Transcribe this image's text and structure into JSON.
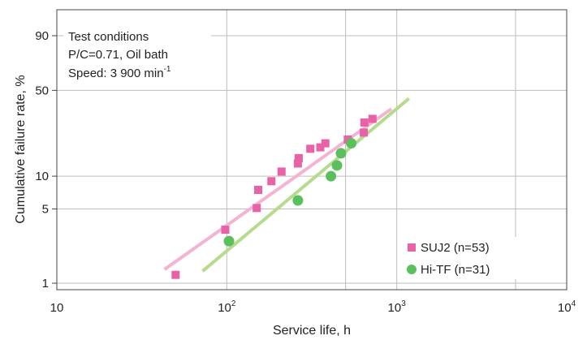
{
  "chart_data": {
    "type": "scatter",
    "title": "",
    "xlabel": "Service life, h",
    "ylabel": "Cumulative failure rate, %",
    "x_scale": "log",
    "y_scale": "weibull",
    "xlim": [
      10,
      10000
    ],
    "ylim": [
      0.8,
      99
    ],
    "grid": true,
    "legend_position": "bottom-right",
    "x_ticks": [
      {
        "value": 10,
        "base": "10",
        "exp": ""
      },
      {
        "value": 100,
        "base": "10",
        "exp": "2"
      },
      {
        "value": 1000,
        "base": "10",
        "exp": "3"
      },
      {
        "value": 10000,
        "base": "10",
        "exp": "4"
      }
    ],
    "y_ticks": [
      {
        "value": 1,
        "label": "1"
      },
      {
        "value": 5,
        "label": "5"
      },
      {
        "value": 10,
        "label": "10"
      },
      {
        "value": 50,
        "label": "50"
      },
      {
        "value": 90,
        "label": "90"
      }
    ],
    "annotation": {
      "line1": "Test conditions",
      "line2": "P/C=0.71, Oil bath",
      "line3_main": "Speed: 3 900 min",
      "line3_sup": "-1"
    },
    "series": [
      {
        "name": "SUJ2 (n=53)",
        "color": "#e862a8",
        "marker": "square",
        "fit": {
          "x": [
            43,
            930
          ],
          "y": [
            1.35,
            37
          ]
        },
        "fit_color": "#f5b3d4",
        "points": [
          {
            "x": 50,
            "y": 1.2
          },
          {
            "x": 98,
            "y": 3.2
          },
          {
            "x": 150,
            "y": 5.1
          },
          {
            "x": 153,
            "y": 7.5
          },
          {
            "x": 183,
            "y": 9.0
          },
          {
            "x": 210,
            "y": 11.0
          },
          {
            "x": 262,
            "y": 13.0
          },
          {
            "x": 265,
            "y": 14.5
          },
          {
            "x": 310,
            "y": 17.5
          },
          {
            "x": 355,
            "y": 18.0
          },
          {
            "x": 380,
            "y": 19.5
          },
          {
            "x": 515,
            "y": 21.0
          },
          {
            "x": 640,
            "y": 24.0
          },
          {
            "x": 645,
            "y": 29.0
          },
          {
            "x": 720,
            "y": 31.0
          }
        ]
      },
      {
        "name": "Hi-TF (n=31)",
        "color": "#5cbf5e",
        "marker": "circle",
        "fit": {
          "x": [
            72,
            1180
          ],
          "y": [
            1.3,
            44
          ]
        },
        "fit_color": "#b4dc8c",
        "points": [
          {
            "x": 103,
            "y": 2.5
          },
          {
            "x": 262,
            "y": 6.0
          },
          {
            "x": 410,
            "y": 10.0
          },
          {
            "x": 445,
            "y": 12.5
          },
          {
            "x": 470,
            "y": 16.0
          },
          {
            "x": 540,
            "y": 19.5
          }
        ]
      }
    ]
  }
}
